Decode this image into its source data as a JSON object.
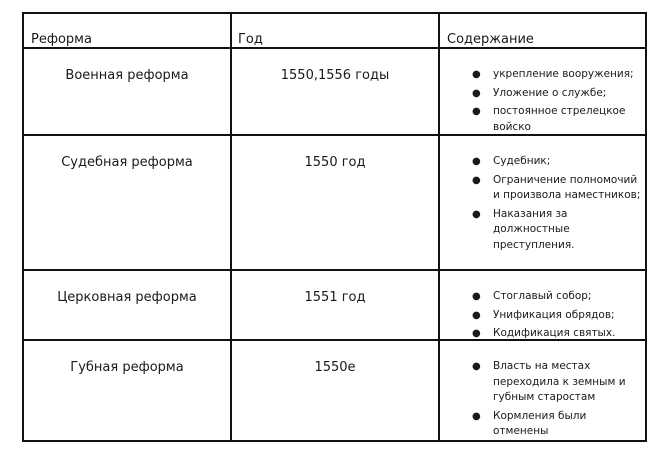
{
  "table": {
    "headers": [
      "Реформа",
      "Год",
      "Содержание"
    ],
    "rows": [
      {
        "reform": "Военная реформа",
        "year": "1550,1556 годы",
        "content": [
          "укрепление вооружения;",
          "Уложение о службе;",
          "постоянное стрелецкое войско"
        ]
      },
      {
        "reform": "Судебная реформа",
        "year": "1550 год",
        "content": [
          "Судебник;",
          "Ограничение полномочий и произвола наместников;",
          "Наказания за должностные преступления."
        ]
      },
      {
        "reform": "Церковная реформа",
        "year": "1551 год",
        "content": [
          "Стоглавый собор;",
          "Унификация обрядов;",
          "Кодификация святых."
        ]
      },
      {
        "reform": "Губная реформа",
        "year": "1550е",
        "content": [
          "Власть на местах переходила к земным и губным старостам",
          "Кормления были отменены"
        ]
      }
    ]
  }
}
